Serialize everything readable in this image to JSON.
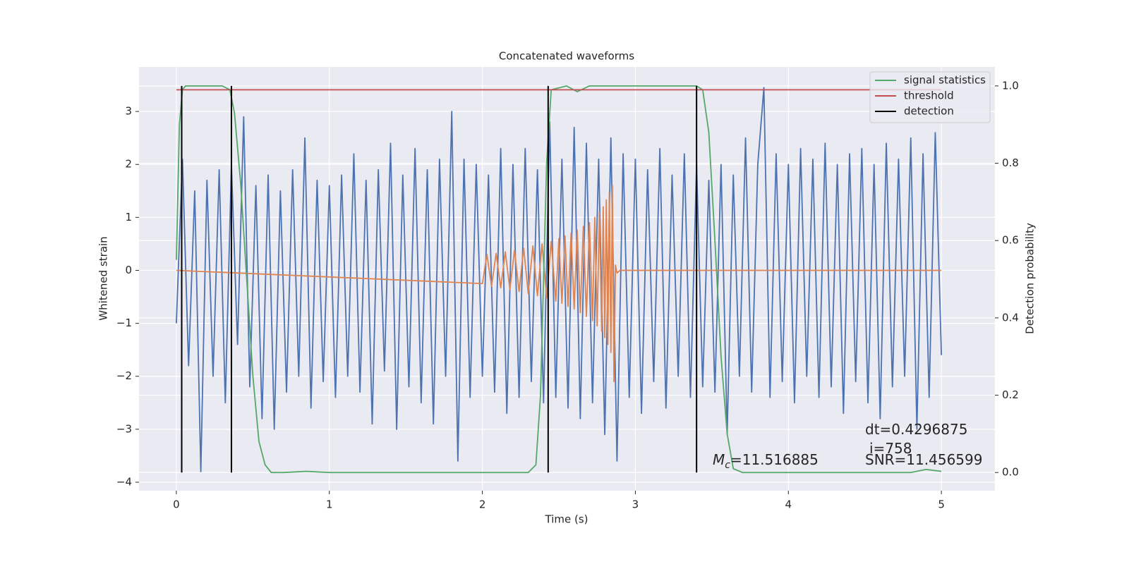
{
  "chart_data": {
    "type": "line",
    "title": "Concatenated waveforms",
    "xlabel": "Time (s)",
    "ylabel": "Whitened strain",
    "y2label": "Detection probability",
    "xlim": [
      -0.244,
      5.35
    ],
    "xticks": [
      0,
      1,
      2,
      3,
      4,
      5
    ],
    "ylim": [
      -4.16,
      3.84
    ],
    "yticks": [
      {
        "value": -4,
        "label": "−4"
      },
      {
        "value": -3,
        "label": "−3"
      },
      {
        "value": -2,
        "label": "−2"
      },
      {
        "value": -1,
        "label": "−1"
      },
      0,
      1,
      2,
      3
    ],
    "y2lim": [
      -0.047,
      1.049
    ],
    "y2ticks": [
      {
        "value": 0,
        "label": "0.0"
      },
      {
        "value": 0.2,
        "label": "0.2"
      },
      {
        "value": 0.4,
        "label": "0.4"
      },
      {
        "value": 0.6,
        "label": "0.6"
      },
      {
        "value": 0.8,
        "label": "0.8"
      },
      {
        "value": 1,
        "label": "1.0"
      }
    ],
    "grid": true,
    "legend": "upper right",
    "series": [
      {
        "color": "#4c72b0",
        "x": [
          0,
          0.04,
          0.08,
          0.12,
          0.16,
          0.2,
          0.24,
          0.28,
          0.32,
          0.36,
          0.4,
          0.44,
          0.48,
          0.52,
          0.56,
          0.6,
          0.64,
          0.68,
          0.72,
          0.76,
          0.8,
          0.84,
          0.88,
          0.92,
          0.96,
          1.0,
          1.04,
          1.08,
          1.12,
          1.16,
          1.2,
          1.24,
          1.28,
          1.32,
          1.36,
          1.4,
          1.44,
          1.48,
          1.52,
          1.56,
          1.6,
          1.64,
          1.68,
          1.72,
          1.76,
          1.8,
          1.84,
          1.88,
          1.92,
          1.96,
          2.0,
          2.04,
          2.08,
          2.12,
          2.16,
          2.2,
          2.24,
          2.28,
          2.32,
          2.36,
          2.4,
          2.44,
          2.48,
          2.52,
          2.56,
          2.6,
          2.64,
          2.68,
          2.72,
          2.76,
          2.8,
          2.84,
          2.88,
          2.92,
          2.96,
          3.0,
          3.04,
          3.08,
          3.12,
          3.16,
          3.2,
          3.24,
          3.28,
          3.32,
          3.36,
          3.4,
          3.44,
          3.48,
          3.52,
          3.56,
          3.6,
          3.64,
          3.68,
          3.72,
          3.76,
          3.8,
          3.84,
          3.88,
          3.92,
          3.96,
          4.0,
          4.04,
          4.08,
          4.12,
          4.16,
          4.2,
          4.24,
          4.28,
          4.32,
          4.36,
          4.4,
          4.44,
          4.48,
          4.52,
          4.56,
          4.6,
          4.64,
          4.68,
          4.72,
          4.76,
          4.8,
          4.84,
          4.88,
          4.92,
          4.96,
          5.0
        ],
        "values": [
          -1.0,
          2.1,
          -1.8,
          1.5,
          -3.8,
          1.7,
          -2.0,
          1.9,
          -2.5,
          2.0,
          -1.4,
          2.9,
          -2.2,
          1.6,
          -2.8,
          1.8,
          -3.0,
          1.5,
          -2.3,
          1.9,
          -2.0,
          2.5,
          -2.6,
          1.7,
          -2.1,
          1.6,
          -2.4,
          1.8,
          -2.0,
          2.2,
          -2.3,
          1.7,
          -2.9,
          1.9,
          -1.9,
          2.4,
          -3.0,
          1.8,
          -2.2,
          2.3,
          -2.5,
          1.9,
          -2.9,
          2.1,
          -2.0,
          3.0,
          -3.6,
          2.1,
          -2.4,
          2.0,
          -2.0,
          1.8,
          -2.3,
          2.3,
          -2.7,
          2.0,
          -2.4,
          2.3,
          -2.1,
          1.9,
          -2.5,
          2.8,
          -2.4,
          2.1,
          -2.6,
          2.7,
          -2.8,
          2.4,
          -2.5,
          2.1,
          -3.1,
          2.5,
          -3.6,
          2.2,
          -2.4,
          2.1,
          -2.7,
          1.9,
          -2.1,
          2.3,
          -2.6,
          1.8,
          -2.0,
          2.2,
          -2.4,
          2.0,
          -2.2,
          1.7,
          -2.3,
          2.0,
          -3.1,
          1.8,
          -2.0,
          2.5,
          -2.3,
          2.0,
          3.45,
          -2.4,
          2.2,
          -2.1,
          2.0,
          -2.5,
          2.3,
          -2.0,
          2.1,
          -2.4,
          2.4,
          -2.2,
          2.0,
          -2.7,
          2.2,
          -2.1,
          2.3,
          -2.5,
          2.0,
          -2.8,
          2.4,
          -2.2,
          2.1,
          -2.0,
          2.5,
          -3.0,
          2.2,
          -2.4,
          2.6,
          -1.6
        ]
      },
      {
        "color": "#dd8452",
        "x": [
          0,
          2.0,
          2.03,
          2.06,
          2.09,
          2.12,
          2.15,
          2.18,
          2.21,
          2.24,
          2.27,
          2.3,
          2.33,
          2.36,
          2.39,
          2.42,
          2.45,
          2.48,
          2.5,
          2.52,
          2.54,
          2.56,
          2.58,
          2.6,
          2.62,
          2.64,
          2.66,
          2.68,
          2.7,
          2.72,
          2.735,
          2.75,
          2.765,
          2.78,
          2.79,
          2.8,
          2.81,
          2.82,
          2.83,
          2.84,
          2.85,
          2.86,
          2.87,
          2.88,
          2.9,
          5
        ],
        "values": [
          0,
          -0.25,
          0.3,
          -0.3,
          0.32,
          -0.33,
          0.35,
          -0.36,
          0.38,
          -0.4,
          0.42,
          -0.44,
          0.46,
          -0.48,
          0.5,
          -0.52,
          0.55,
          -0.58,
          0.6,
          -0.62,
          0.65,
          -0.68,
          0.7,
          -0.73,
          0.76,
          -0.8,
          0.83,
          -0.87,
          0.9,
          -0.95,
          1.0,
          -1.05,
          1.1,
          -1.15,
          1.2,
          -1.27,
          1.33,
          -1.4,
          1.47,
          -1.55,
          1.6,
          -2.1,
          0.1,
          -0.05,
          0,
          0
        ]
      },
      {
        "name": "signal statistics",
        "axis": "y2",
        "color": "#55a868",
        "x": [
          0,
          0.02,
          0.04,
          0.06,
          0.1,
          0.3,
          0.35,
          0.38,
          0.42,
          0.46,
          0.5,
          0.54,
          0.58,
          0.62,
          0.7,
          0.85,
          1.0,
          2.3,
          2.35,
          2.38,
          2.42,
          2.45,
          2.55,
          2.62,
          2.7,
          3.4,
          3.44,
          3.48,
          3.52,
          3.56,
          3.6,
          3.64,
          3.7,
          4.8,
          4.9,
          5.0
        ],
        "values": [
          0.55,
          0.9,
          0.99,
          1.0,
          1.0,
          1.0,
          0.99,
          0.93,
          0.75,
          0.5,
          0.25,
          0.08,
          0.02,
          0.0,
          0.0,
          0.003,
          0.0,
          0.0,
          0.02,
          0.2,
          0.8,
          0.99,
          1.0,
          0.985,
          1.0,
          1.0,
          0.99,
          0.88,
          0.6,
          0.3,
          0.1,
          0.01,
          0.0,
          0.0,
          0.008,
          0.003
        ]
      },
      {
        "name": "threshold",
        "axis": "y2",
        "color": "#c44e52",
        "x": [
          0,
          5
        ],
        "values": [
          0.99,
          0.99
        ]
      },
      {
        "name": "detection",
        "axis": "y2",
        "kind": "vlines",
        "color": "#000000",
        "x": [
          0.035,
          0.36,
          2.43,
          3.4
        ],
        "ymin": 0,
        "ymax": 1
      }
    ],
    "annotations": [
      "dt=0.4296875",
      "i=758",
      "SNR=11.456599"
    ],
    "chirp_mass_annotation": {
      "symbol": "M",
      "subscript": "c",
      "text": "=11.516885"
    }
  }
}
